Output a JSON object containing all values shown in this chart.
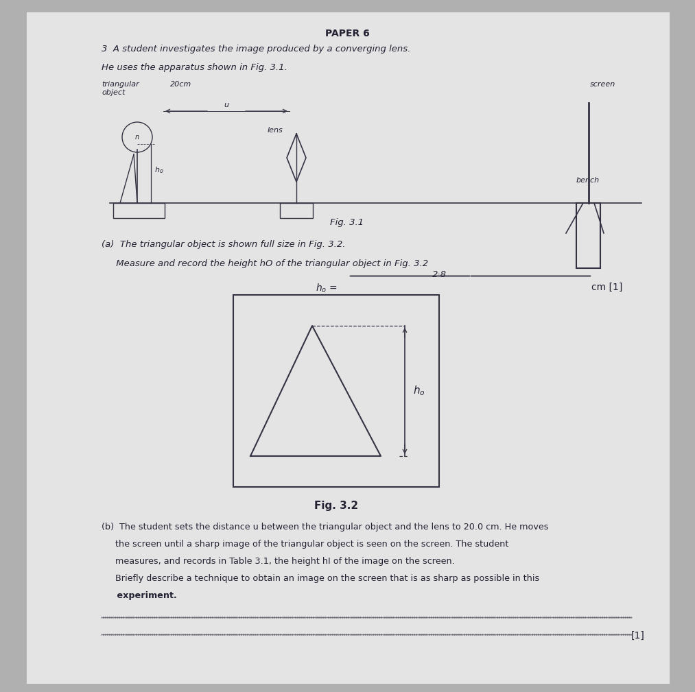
{
  "bg_color": "#b0b0b0",
  "paper_color": "#e0e0e0",
  "title": "PAPER 6",
  "line1": "3  A student investigates the image produced by a converging lens.",
  "line2": "He uses the apparatus shown in Fig. 3.1.",
  "fig31_label": "Fig. 3.1",
  "part_a_line1": "(a)  The triangular object is shown full size in Fig. 3.2.",
  "part_a_line2": "     Measure and record the height hO of the triangular object in Fig. 3.2",
  "answer_value": "2·8",
  "fig32_label": "Fig. 3.2",
  "part_b_line1": "(b)  The student sets the distance u between the triangular object and the lens to 20.0 cm. He moves",
  "part_b_line2": "     the screen until a sharp image of the triangular object is seen on the screen. The student",
  "part_b_line3": "     measures, and records in Table 3.1, the height hI of the image on the screen.",
  "part_b_line4": "     Briefly describe a technique to obtain an image on the screen that is as sharp as possible in this",
  "part_b_line5": "     experiment.",
  "text_color": "#222233",
  "line_color": "#333344",
  "dot_color": "#444455"
}
